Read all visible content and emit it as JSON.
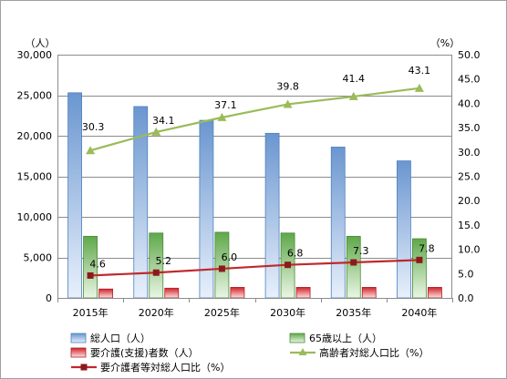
{
  "chart_data": {
    "type": "bar",
    "categories": [
      "2015年",
      "2020年",
      "2025年",
      "2030年",
      "2035年",
      "2040年"
    ],
    "left_axis": {
      "unit_label": "（人）",
      "range": [
        0,
        30000
      ],
      "ticks": [
        "0",
        "5,000",
        "10,000",
        "15,000",
        "20,000",
        "25,000",
        "30,000"
      ],
      "tick_values": [
        0,
        5000,
        10000,
        15000,
        20000,
        25000,
        30000
      ]
    },
    "right_axis": {
      "unit_label": "（%）",
      "range": [
        0,
        50
      ],
      "ticks": [
        "0.0",
        "5.0",
        "10.0",
        "15.0",
        "20.0",
        "25.0",
        "30.0",
        "35.0",
        "40.0",
        "45.0",
        "50.0"
      ],
      "tick_values": [
        0,
        5,
        10,
        15,
        20,
        25,
        30,
        35,
        40,
        45,
        50
      ]
    },
    "bar_series": [
      {
        "name": "総人口（人）",
        "values": [
          25300,
          23600,
          21900,
          20300,
          18600,
          16900
        ],
        "color": "#4f81bd"
      },
      {
        "name": "65歳以上（人）",
        "values": [
          7600,
          8000,
          8100,
          8000,
          7600,
          7300
        ],
        "color": "#5fa84a"
      },
      {
        "name": "要介護(支援)者数（人）",
        "values": [
          1100,
          1200,
          1300,
          1300,
          1300,
          1300
        ],
        "color": "#d0232a"
      }
    ],
    "line_series": [
      {
        "name": "高齢者対総人口比（%）",
        "values": [
          30.3,
          34.1,
          37.1,
          39.8,
          41.4,
          43.1
        ],
        "labels": [
          "30.3",
          "34.1",
          "37.1",
          "39.8",
          "41.4",
          "43.1"
        ],
        "color": "#9bbb59",
        "marker": "triangle"
      },
      {
        "name": "要介護者等対総人口比（%）",
        "values": [
          4.6,
          5.2,
          6.0,
          6.8,
          7.3,
          7.8
        ],
        "labels": [
          "4.6",
          "5.2",
          "6.0",
          "6.8",
          "7.3",
          "7.8"
        ],
        "color": "#c0282c",
        "marker": "square"
      }
    ],
    "grid": true,
    "legend_position": "bottom"
  }
}
